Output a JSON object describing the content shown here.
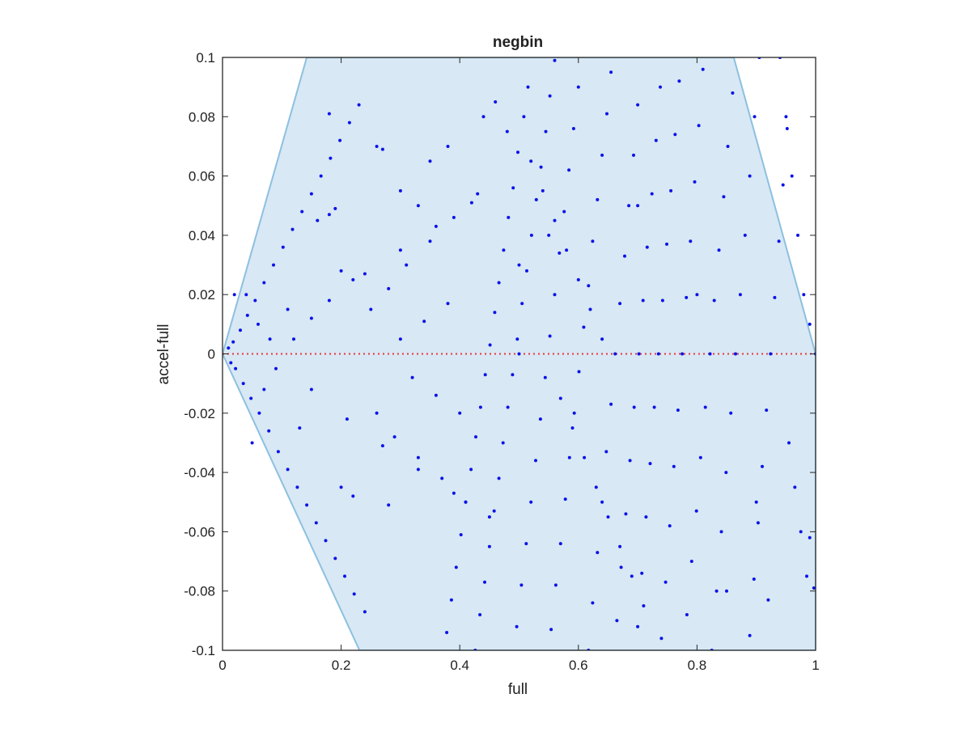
{
  "chart_data": {
    "type": "scatter",
    "title": "negbin",
    "xlabel": "full",
    "ylabel": "accel-full",
    "xlim": [
      0,
      1
    ],
    "ylim": [
      -0.1,
      0.1
    ],
    "x_ticks": [
      "0",
      "0.2",
      "0.4",
      "0.6",
      "0.8",
      "1"
    ],
    "y_ticks": [
      "-0.1",
      "-0.08",
      "-0.06",
      "-0.04",
      "-0.02",
      "0",
      "0.02",
      "0.04",
      "0.06",
      "0.08",
      "0.1"
    ],
    "grid": false,
    "zero_line": {
      "y": 0,
      "color": "#e8343a",
      "style": "dotted"
    },
    "region": {
      "fill": "#d8e8f4",
      "edge": "#8cc0e0",
      "vertices": [
        [
          0.0,
          0.0
        ],
        [
          0.142,
          0.1
        ],
        [
          0.862,
          0.1
        ],
        [
          1.0,
          0.0
        ],
        [
          1.0,
          -0.1
        ],
        [
          0.231,
          -0.1
        ],
        [
          0.0,
          0.0
        ]
      ]
    },
    "marker_color": "#0a12e8",
    "series_points": [
      [
        0.5,
        0.0
      ],
      [
        0.515,
        0.09
      ],
      [
        0.508,
        0.08
      ],
      [
        0.498,
        0.068
      ],
      [
        0.49,
        0.056
      ],
      [
        0.482,
        0.046
      ],
      [
        0.474,
        0.035
      ],
      [
        0.466,
        0.024
      ],
      [
        0.459,
        0.014
      ],
      [
        0.451,
        0.003
      ],
      [
        0.443,
        -0.007
      ],
      [
        0.435,
        -0.018
      ],
      [
        0.427,
        -0.028
      ],
      [
        0.419,
        -0.039
      ],
      [
        0.41,
        -0.05
      ],
      [
        0.402,
        -0.061
      ],
      [
        0.394,
        -0.072
      ],
      [
        0.386,
        -0.083
      ],
      [
        0.378,
        -0.094
      ],
      [
        0.56,
        0.099
      ],
      [
        0.552,
        0.087
      ],
      [
        0.545,
        0.075
      ],
      [
        0.537,
        0.063
      ],
      [
        0.529,
        0.052
      ],
      [
        0.521,
        0.04
      ],
      [
        0.513,
        0.028
      ],
      [
        0.505,
        0.017
      ],
      [
        0.497,
        0.005
      ],
      [
        0.489,
        -0.007
      ],
      [
        0.481,
        -0.018
      ],
      [
        0.473,
        -0.03
      ],
      [
        0.466,
        -0.042
      ],
      [
        0.458,
        -0.053
      ],
      [
        0.45,
        -0.065
      ],
      [
        0.442,
        -0.077
      ],
      [
        0.434,
        -0.088
      ],
      [
        0.426,
        -0.1
      ],
      [
        0.6,
        0.09
      ],
      [
        0.592,
        0.076
      ],
      [
        0.584,
        0.062
      ],
      [
        0.576,
        0.048
      ],
      [
        0.568,
        0.034
      ],
      [
        0.56,
        0.02
      ],
      [
        0.552,
        0.006
      ],
      [
        0.544,
        -0.008
      ],
      [
        0.536,
        -0.022
      ],
      [
        0.528,
        -0.036
      ],
      [
        0.52,
        -0.05
      ],
      [
        0.512,
        -0.064
      ],
      [
        0.504,
        -0.078
      ],
      [
        0.496,
        -0.092
      ],
      [
        0.655,
        0.095
      ],
      [
        0.648,
        0.081
      ],
      [
        0.64,
        0.067
      ],
      [
        0.632,
        0.052
      ],
      [
        0.624,
        0.038
      ],
      [
        0.617,
        0.023
      ],
      [
        0.609,
        0.009
      ],
      [
        0.601,
        -0.006
      ],
      [
        0.593,
        -0.02
      ],
      [
        0.585,
        -0.035
      ],
      [
        0.578,
        -0.049
      ],
      [
        0.57,
        -0.064
      ],
      [
        0.562,
        -0.078
      ],
      [
        0.554,
        -0.093
      ],
      [
        0.7,
        0.084
      ],
      [
        0.693,
        0.067
      ],
      [
        0.685,
        0.05
      ],
      [
        0.678,
        0.033
      ],
      [
        0.67,
        0.017
      ],
      [
        0.662,
        0.0
      ],
      [
        0.655,
        -0.017
      ],
      [
        0.647,
        -0.033
      ],
      [
        0.64,
        -0.05
      ],
      [
        0.632,
        -0.067
      ],
      [
        0.624,
        -0.084
      ],
      [
        0.617,
        -0.1
      ],
      [
        0.738,
        0.09
      ],
      [
        0.731,
        0.072
      ],
      [
        0.724,
        0.054
      ],
      [
        0.716,
        0.036
      ],
      [
        0.709,
        0.018
      ],
      [
        0.702,
        0.0
      ],
      [
        0.694,
        -0.018
      ],
      [
        0.687,
        -0.036
      ],
      [
        0.68,
        -0.054
      ],
      [
        0.672,
        -0.072
      ],
      [
        0.665,
        -0.09
      ],
      [
        0.77,
        0.092
      ],
      [
        0.763,
        0.074
      ],
      [
        0.756,
        0.055
      ],
      [
        0.749,
        0.037
      ],
      [
        0.742,
        0.018
      ],
      [
        0.735,
        0.0
      ],
      [
        0.728,
        -0.018
      ],
      [
        0.721,
        -0.037
      ],
      [
        0.714,
        -0.055
      ],
      [
        0.707,
        -0.074
      ],
      [
        0.7,
        -0.092
      ],
      [
        0.81,
        0.096
      ],
      [
        0.803,
        0.077
      ],
      [
        0.796,
        0.058
      ],
      [
        0.789,
        0.038
      ],
      [
        0.782,
        0.019
      ],
      [
        0.775,
        0.0
      ],
      [
        0.768,
        -0.019
      ],
      [
        0.761,
        -0.038
      ],
      [
        0.754,
        -0.058
      ],
      [
        0.747,
        -0.077
      ],
      [
        0.74,
        -0.096
      ],
      [
        0.86,
        0.088
      ],
      [
        0.852,
        0.07
      ],
      [
        0.845,
        0.053
      ],
      [
        0.837,
        0.035
      ],
      [
        0.829,
        0.018
      ],
      [
        0.822,
        0.0
      ],
      [
        0.814,
        -0.018
      ],
      [
        0.806,
        -0.035
      ],
      [
        0.799,
        -0.053
      ],
      [
        0.791,
        -0.07
      ],
      [
        0.783,
        -0.088
      ],
      [
        0.905,
        0.1
      ],
      [
        0.897,
        0.08
      ],
      [
        0.889,
        0.06
      ],
      [
        0.881,
        0.04
      ],
      [
        0.873,
        0.02
      ],
      [
        0.865,
        0.0
      ],
      [
        0.857,
        -0.02
      ],
      [
        0.849,
        -0.04
      ],
      [
        0.841,
        -0.06
      ],
      [
        0.833,
        -0.08
      ],
      [
        0.825,
        -0.1
      ],
      [
        0.952,
        0.076
      ],
      [
        0.945,
        0.057
      ],
      [
        0.938,
        0.038
      ],
      [
        0.931,
        0.019
      ],
      [
        0.924,
        0.0
      ],
      [
        0.917,
        -0.019
      ],
      [
        0.91,
        -0.038
      ],
      [
        0.903,
        -0.057
      ],
      [
        0.896,
        -0.076
      ],
      [
        0.889,
        -0.095
      ],
      [
        0.94,
        0.1
      ],
      [
        0.95,
        0.08
      ],
      [
        0.96,
        0.06
      ],
      [
        0.97,
        0.04
      ],
      [
        0.98,
        0.02
      ],
      [
        0.99,
        0.01
      ],
      [
        1.0,
        0.0
      ],
      [
        0.955,
        -0.03
      ],
      [
        0.965,
        -0.045
      ],
      [
        0.975,
        -0.06
      ],
      [
        0.985,
        -0.075
      ],
      [
        0.997,
        -0.079
      ],
      [
        0.01,
        0.002
      ],
      [
        0.014,
        -0.003
      ],
      [
        0.018,
        0.004
      ],
      [
        0.022,
        -0.005
      ],
      [
        0.03,
        0.008
      ],
      [
        0.035,
        -0.01
      ],
      [
        0.042,
        0.013
      ],
      [
        0.048,
        -0.015
      ],
      [
        0.055,
        0.018
      ],
      [
        0.062,
        -0.02
      ],
      [
        0.07,
        0.024
      ],
      [
        0.078,
        -0.026
      ],
      [
        0.086,
        0.03
      ],
      [
        0.094,
        -0.033
      ],
      [
        0.102,
        0.036
      ],
      [
        0.11,
        -0.039
      ],
      [
        0.118,
        0.042
      ],
      [
        0.126,
        -0.045
      ],
      [
        0.134,
        0.048
      ],
      [
        0.142,
        -0.051
      ],
      [
        0.15,
        0.054
      ],
      [
        0.158,
        -0.057
      ],
      [
        0.166,
        0.06
      ],
      [
        0.174,
        -0.063
      ],
      [
        0.182,
        0.066
      ],
      [
        0.19,
        -0.069
      ],
      [
        0.198,
        0.072
      ],
      [
        0.206,
        -0.075
      ],
      [
        0.214,
        0.078
      ],
      [
        0.222,
        -0.081
      ],
      [
        0.23,
        0.084
      ],
      [
        0.24,
        -0.087
      ],
      [
        0.12,
        0.005
      ],
      [
        0.15,
        -0.012
      ],
      [
        0.18,
        0.018
      ],
      [
        0.21,
        -0.022
      ],
      [
        0.24,
        0.027
      ],
      [
        0.27,
        -0.031
      ],
      [
        0.3,
        0.035
      ],
      [
        0.33,
        -0.039
      ],
      [
        0.36,
        0.043
      ],
      [
        0.39,
        -0.047
      ],
      [
        0.42,
        0.051
      ],
      [
        0.45,
        -0.055
      ],
      [
        0.3,
        0.005
      ],
      [
        0.32,
        -0.008
      ],
      [
        0.34,
        0.011
      ],
      [
        0.36,
        -0.014
      ],
      [
        0.38,
        0.017
      ],
      [
        0.4,
        -0.02
      ],
      [
        0.25,
        0.015
      ],
      [
        0.26,
        -0.02
      ],
      [
        0.28,
        0.022
      ],
      [
        0.29,
        -0.028
      ],
      [
        0.31,
        0.03
      ],
      [
        0.33,
        -0.035
      ],
      [
        0.35,
        0.038
      ],
      [
        0.37,
        -0.042
      ],
      [
        0.39,
        0.046
      ],
      [
        0.41,
        -0.05
      ],
      [
        0.43,
        0.054
      ],
      [
        0.35,
        0.065
      ],
      [
        0.38,
        0.07
      ],
      [
        0.44,
        0.08
      ],
      [
        0.46,
        0.085
      ],
      [
        0.48,
        0.075
      ],
      [
        0.52,
        0.065
      ],
      [
        0.54,
        0.055
      ],
      [
        0.56,
        0.045
      ],
      [
        0.58,
        0.035
      ],
      [
        0.6,
        0.025
      ],
      [
        0.62,
        0.015
      ],
      [
        0.64,
        0.005
      ],
      [
        0.57,
        -0.015
      ],
      [
        0.59,
        -0.025
      ],
      [
        0.61,
        -0.035
      ],
      [
        0.63,
        -0.045
      ],
      [
        0.65,
        -0.055
      ],
      [
        0.67,
        -0.065
      ],
      [
        0.69,
        -0.075
      ],
      [
        0.71,
        -0.085
      ],
      [
        0.16,
        0.045
      ],
      [
        0.18,
        0.047
      ],
      [
        0.19,
        0.049
      ],
      [
        0.2,
        0.028
      ],
      [
        0.22,
        0.025
      ],
      [
        0.2,
        -0.045
      ],
      [
        0.22,
        -0.048
      ],
      [
        0.28,
        -0.051
      ],
      [
        0.27,
        0.069
      ],
      [
        0.26,
        0.07
      ],
      [
        0.18,
        0.081
      ],
      [
        0.3,
        0.055
      ],
      [
        0.33,
        0.05
      ],
      [
        0.5,
        0.03
      ],
      [
        0.55,
        0.04
      ],
      [
        0.7,
        0.05
      ],
      [
        0.8,
        0.02
      ],
      [
        0.85,
        -0.08
      ],
      [
        0.9,
        -0.05
      ],
      [
        0.92,
        -0.083
      ],
      [
        0.99,
        -0.062
      ],
      [
        0.02,
        0.02
      ],
      [
        0.04,
        0.02
      ],
      [
        0.06,
        0.01
      ],
      [
        0.08,
        0.005
      ],
      [
        0.05,
        -0.03
      ],
      [
        0.07,
        -0.012
      ],
      [
        0.09,
        -0.005
      ],
      [
        0.11,
        0.015
      ],
      [
        0.13,
        -0.025
      ],
      [
        0.15,
        0.012
      ]
    ]
  }
}
